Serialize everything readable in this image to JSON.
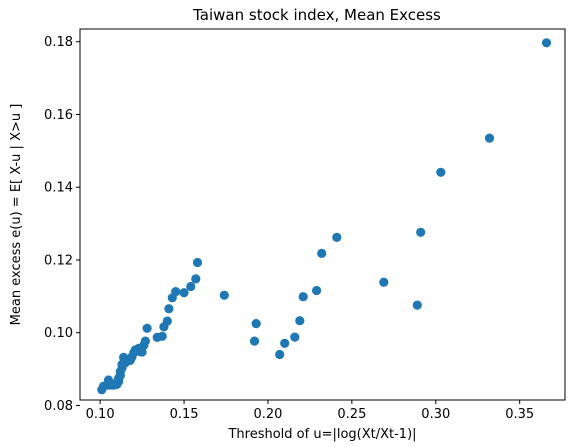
{
  "chart_data": {
    "type": "scatter",
    "title": "Taiwan stock index, Mean Excess",
    "xlabel": "Threshold of u=|log(Xt/Xt-1)|",
    "ylabel": "Mean excess e(u) = E[ X-u | X>u ]",
    "xlim": [
      0.088,
      0.377
    ],
    "ylim": [
      0.0815,
      0.1835
    ],
    "xticks": [
      0.1,
      0.15,
      0.2,
      0.25,
      0.3,
      0.35
    ],
    "xtick_labels": [
      "0.10",
      "0.15",
      "0.20",
      "0.25",
      "0.30",
      "0.35"
    ],
    "yticks": [
      0.08,
      0.1,
      0.12,
      0.14,
      0.16,
      0.18
    ],
    "ytick_labels": [
      "0.08",
      "0.10",
      "0.12",
      "0.14",
      "0.16",
      "0.18"
    ],
    "grid": false,
    "marker_color": "#1f77b4",
    "points": [
      [
        0.101,
        0.0843
      ],
      [
        0.102,
        0.0853
      ],
      [
        0.104,
        0.0856
      ],
      [
        0.105,
        0.087
      ],
      [
        0.106,
        0.0856
      ],
      [
        0.107,
        0.0857
      ],
      [
        0.108,
        0.0856
      ],
      [
        0.109,
        0.086
      ],
      [
        0.11,
        0.0858
      ],
      [
        0.111,
        0.0866
      ],
      [
        0.111,
        0.0875
      ],
      [
        0.112,
        0.0882
      ],
      [
        0.112,
        0.0893
      ],
      [
        0.113,
        0.0903
      ],
      [
        0.113,
        0.0913
      ],
      [
        0.114,
        0.0932
      ],
      [
        0.115,
        0.0917
      ],
      [
        0.117,
        0.0925
      ],
      [
        0.118,
        0.0924
      ],
      [
        0.119,
        0.0934
      ],
      [
        0.12,
        0.0945
      ],
      [
        0.121,
        0.0953
      ],
      [
        0.123,
        0.0957
      ],
      [
        0.124,
        0.0948
      ],
      [
        0.125,
        0.0947
      ],
      [
        0.126,
        0.0965
      ],
      [
        0.127,
        0.0977
      ],
      [
        0.128,
        0.1012
      ],
      [
        0.134,
        0.0987
      ],
      [
        0.137,
        0.099
      ],
      [
        0.138,
        0.1016
      ],
      [
        0.14,
        0.1032
      ],
      [
        0.141,
        0.1066
      ],
      [
        0.143,
        0.1096
      ],
      [
        0.145,
        0.1113
      ],
      [
        0.15,
        0.111
      ],
      [
        0.154,
        0.1127
      ],
      [
        0.157,
        0.1148
      ],
      [
        0.158,
        0.1193
      ],
      [
        0.174,
        0.1103
      ],
      [
        0.192,
        0.0977
      ],
      [
        0.193,
        0.1025
      ],
      [
        0.207,
        0.094
      ],
      [
        0.21,
        0.0971
      ],
      [
        0.216,
        0.0988
      ],
      [
        0.219,
        0.1033
      ],
      [
        0.221,
        0.1099
      ],
      [
        0.229,
        0.1116
      ],
      [
        0.232,
        0.1218
      ],
      [
        0.241,
        0.1262
      ],
      [
        0.269,
        0.1139
      ],
      [
        0.289,
        0.1076
      ],
      [
        0.291,
        0.1276
      ],
      [
        0.303,
        0.1441
      ],
      [
        0.332,
        0.1535
      ],
      [
        0.366,
        0.1797
      ]
    ]
  }
}
